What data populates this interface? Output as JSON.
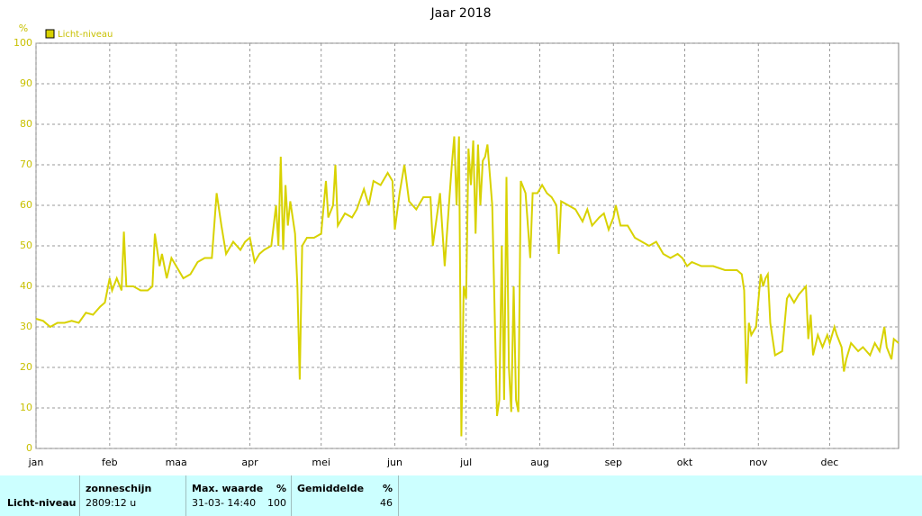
{
  "chart_data": {
    "type": "line",
    "title": "Jaar 2018",
    "y_unit": "%",
    "xlim": [
      0,
      363
    ],
    "ylim": [
      0,
      100
    ],
    "xticks": [
      {
        "value": 0,
        "label": "jan"
      },
      {
        "value": 31,
        "label": "feb"
      },
      {
        "value": 59,
        "label": "maa"
      },
      {
        "value": 90,
        "label": "apr"
      },
      {
        "value": 120,
        "label": "mei"
      },
      {
        "value": 151,
        "label": "jun"
      },
      {
        "value": 181,
        "label": "jul"
      },
      {
        "value": 212,
        "label": "aug"
      },
      {
        "value": 243,
        "label": "sep"
      },
      {
        "value": 273,
        "label": "okt"
      },
      {
        "value": 304,
        "label": "nov"
      },
      {
        "value": 334,
        "label": "dec"
      }
    ],
    "yticks": [
      0,
      10,
      20,
      30,
      40,
      50,
      60,
      70,
      80,
      90,
      100
    ],
    "grid": true,
    "legend": "top-left",
    "x": [
      0,
      3,
      6,
      9,
      12,
      15,
      18,
      21,
      24,
      27,
      29,
      31,
      32,
      34,
      36,
      37,
      38,
      41,
      44,
      47,
      49,
      50,
      52,
      53,
      55,
      57,
      59,
      62,
      65,
      68,
      71,
      74,
      76,
      78,
      80,
      83,
      86,
      88,
      90,
      92,
      94,
      96,
      99,
      101,
      102,
      103,
      104,
      105,
      106,
      107,
      109,
      110,
      111,
      112,
      114,
      117,
      120,
      122,
      123,
      125,
      126,
      127,
      130,
      133,
      135,
      138,
      140,
      142,
      145,
      148,
      150,
      151,
      153,
      155,
      157,
      160,
      163,
      166,
      167,
      170,
      172,
      174,
      175,
      176,
      177,
      178,
      179,
      180,
      181,
      182,
      183,
      184,
      185,
      186,
      187,
      188,
      189,
      190,
      192,
      194,
      195,
      196,
      197,
      198,
      199,
      200,
      201,
      202,
      203,
      204,
      206,
      207,
      208,
      209,
      211,
      213,
      215,
      217,
      219,
      220,
      221,
      224,
      227,
      230,
      232,
      234,
      237,
      239,
      241,
      243,
      244,
      246,
      249,
      252,
      255,
      258,
      261,
      264,
      267,
      270,
      272,
      274,
      276,
      280,
      285,
      290,
      295,
      297,
      298,
      299,
      300,
      301,
      303,
      305,
      306,
      307,
      308,
      309,
      311,
      314,
      316,
      317,
      319,
      321,
      324,
      325,
      326,
      327,
      329,
      331,
      333,
      334,
      336,
      337,
      339,
      340,
      341,
      343,
      346,
      348,
      351,
      353,
      355,
      357,
      358,
      360,
      361,
      363
    ],
    "series": [
      {
        "name": "Licht-niveau",
        "color": "#d8d200",
        "values": [
          32,
          31.5,
          30,
          31,
          31,
          31.5,
          31,
          33.5,
          33,
          35,
          36,
          42,
          39,
          42,
          39,
          53.5,
          40,
          40,
          39,
          39,
          40,
          53,
          45,
          48,
          42,
          47,
          45,
          42,
          43,
          46,
          47,
          47,
          63,
          55,
          48,
          51,
          49,
          51,
          52,
          46,
          48,
          49,
          50,
          60,
          50,
          72,
          49,
          65,
          55,
          61,
          53,
          40,
          17,
          50,
          52,
          52,
          53,
          66,
          57,
          60,
          70,
          55,
          58,
          57,
          59,
          64,
          60,
          66,
          65,
          68,
          66,
          54,
          63,
          70,
          61,
          59,
          62,
          62,
          50,
          63,
          45,
          62,
          70,
          77,
          60,
          77,
          3,
          40,
          37,
          74,
          65,
          76,
          53,
          75,
          60,
          71,
          72,
          75,
          60,
          8,
          12,
          50,
          12,
          67,
          20,
          9,
          40,
          12,
          9,
          66,
          63,
          55,
          47,
          63,
          63,
          65,
          63,
          62,
          60,
          48,
          61,
          60,
          59,
          56,
          59,
          55,
          57,
          58,
          54,
          57,
          60,
          55,
          55,
          52,
          51,
          50,
          51,
          48,
          47,
          48,
          47,
          45,
          46,
          45,
          45,
          44,
          44,
          43,
          39,
          16,
          31,
          28,
          30,
          43,
          40,
          42,
          43,
          31,
          23,
          24,
          37,
          38,
          36,
          38,
          40,
          27,
          33,
          23,
          28,
          25,
          28,
          26,
          30,
          28,
          25,
          19,
          22,
          26,
          24,
          25,
          23,
          26,
          24,
          30,
          25,
          22,
          27,
          26
        ]
      }
    ]
  },
  "table": {
    "row_label": "Licht-niveau",
    "columns": [
      {
        "header": "zonneschijn",
        "value": "2809:12 u"
      },
      {
        "header": "Max. waarde",
        "unit": "%",
        "value": "31-03- 14:40",
        "number": 100
      },
      {
        "header": "Gemiddelde",
        "unit": "%",
        "number": 46
      }
    ]
  }
}
